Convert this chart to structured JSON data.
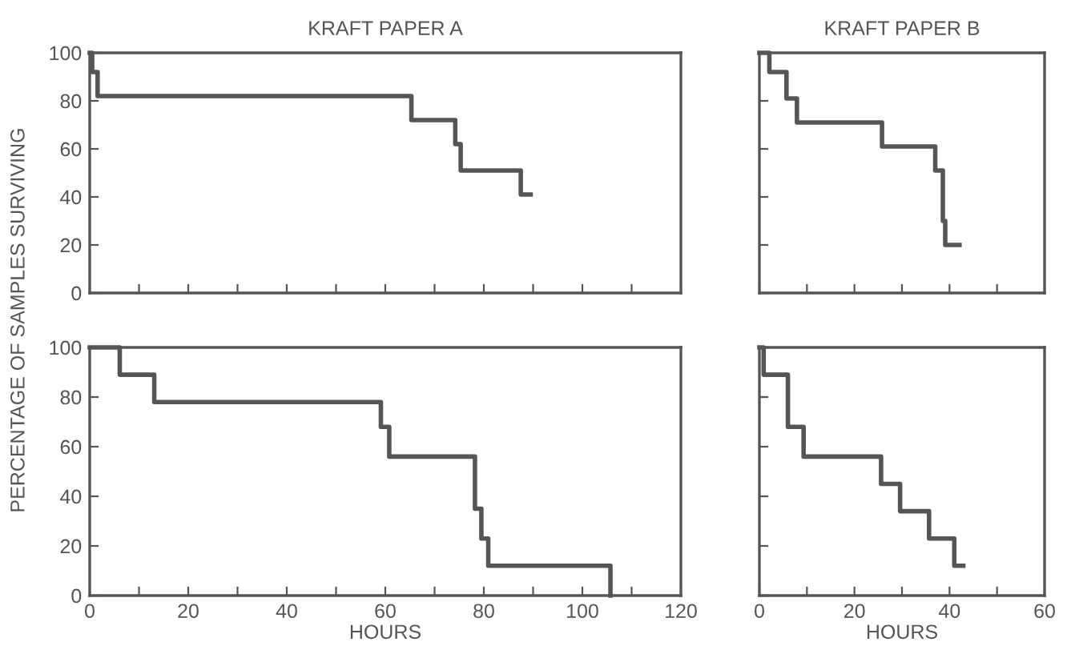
{
  "chart_data": [
    {
      "type": "step",
      "title": "KRAFT PAPER A",
      "ylabel": "PERCENTAGE OF SAMPLES SURVIVING",
      "xlim": [
        0,
        120
      ],
      "xticks": [
        0,
        10,
        20,
        30,
        40,
        50,
        60,
        70,
        80,
        90,
        100,
        110,
        120
      ],
      "ylim": [
        0,
        100
      ],
      "yticks": [
        0,
        20,
        40,
        60,
        80,
        100
      ],
      "tick_labels": "y",
      "grid": false,
      "series": [
        {
          "color": "#555555",
          "x": [
            0,
            0.5,
            1.6,
            65.3,
            74.2,
            75.3,
            87.5,
            89.5
          ],
          "values": [
            100,
            92,
            82,
            72,
            62,
            51,
            41,
            41
          ]
        }
      ]
    },
    {
      "type": "step",
      "title": "KRAFT PAPER B",
      "xlim": [
        0,
        60
      ],
      "xticks": [
        0,
        10,
        20,
        30,
        40,
        50,
        60
      ],
      "ylim": [
        0,
        100
      ],
      "yticks": [
        0,
        20,
        40,
        60,
        80,
        100
      ],
      "tick_labels": false,
      "grid": false,
      "series": [
        {
          "color": "#555555",
          "x": [
            0,
            2.1,
            5.7,
            7.9,
            25.8,
            37,
            38.6,
            39.1,
            42.1
          ],
          "values": [
            100,
            92,
            81,
            71,
            61,
            51,
            30,
            20,
            20
          ]
        }
      ]
    },
    {
      "type": "step",
      "xlabel": "HOURS",
      "xlim": [
        0,
        120
      ],
      "xticks": [
        0,
        {
          "value": 10,
          "label": null
        },
        20,
        {
          "value": 30,
          "label": null
        },
        40,
        {
          "value": 50,
          "label": null
        },
        60,
        {
          "value": 70,
          "label": null
        },
        80,
        {
          "value": 90,
          "label": null
        },
        100,
        {
          "value": 110,
          "label": null
        },
        120
      ],
      "ylim": [
        0,
        100
      ],
      "yticks": [
        0,
        20,
        40,
        60,
        80,
        100
      ],
      "grid": false,
      "series": [
        {
          "color": "#555555",
          "x": [
            0,
            6.1,
            13.1,
            59.1,
            60.8,
            78.2,
            79.5,
            80.9,
            105.7
          ],
          "values": [
            100,
            89,
            78,
            68,
            56,
            35,
            23,
            12,
            0
          ]
        }
      ]
    },
    {
      "type": "step",
      "xlabel": "HOURS",
      "xlim": [
        0,
        60
      ],
      "xticks": [
        0,
        {
          "value": 10,
          "label": null
        },
        20,
        {
          "value": 30,
          "label": null
        },
        40,
        {
          "value": 50,
          "label": null
        },
        60
      ],
      "ylim": [
        0,
        100
      ],
      "yticks": [
        0,
        20,
        40,
        60,
        80,
        100
      ],
      "tick_labels": "x",
      "grid": false,
      "series": [
        {
          "color": "#555555",
          "x": [
            0,
            0.9,
            6.0,
            9.3,
            25.6,
            29.6,
            35.7,
            41,
            42.9
          ],
          "values": [
            100,
            89,
            68,
            56,
            45,
            34,
            23,
            12,
            12
          ]
        }
      ]
    }
  ]
}
